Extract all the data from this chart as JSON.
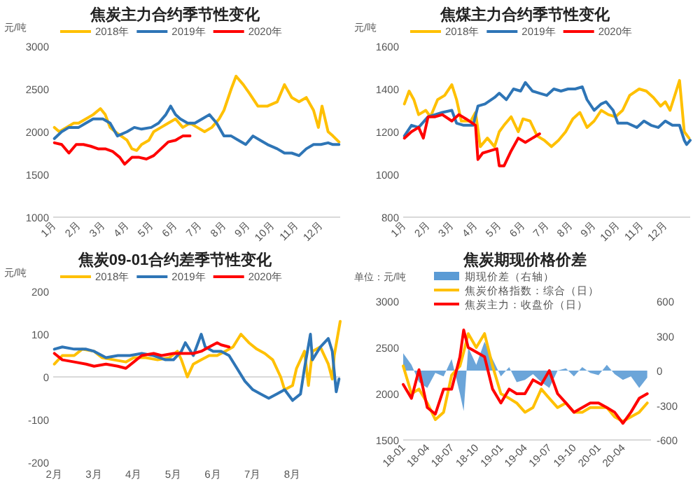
{
  "chart_data": [
    {
      "type": "line",
      "title": "焦炭主力合约季节性变化",
      "ylabel": "元/吨",
      "legend": "top",
      "line_style": "solid",
      "marker": "none",
      "xlim": [
        0.95,
        12.8
      ],
      "xticks": [
        {
          "value": 1,
          "label": "1月"
        },
        {
          "value": 2,
          "label": "2月"
        },
        {
          "value": 3,
          "label": "3月"
        },
        {
          "value": 4,
          "label": "4月"
        },
        {
          "value": 5,
          "label": "5月"
        },
        {
          "value": 6,
          "label": "6月"
        },
        {
          "value": 7,
          "label": "7月"
        },
        {
          "value": 8,
          "label": "8月"
        },
        {
          "value": 9,
          "label": "9月"
        },
        {
          "value": 10,
          "label": "10月"
        },
        {
          "value": 11,
          "label": "11月"
        },
        {
          "value": 12,
          "label": "12月"
        }
      ],
      "ylim": [
        1000,
        3000
      ],
      "yticks": [
        1000,
        1500,
        2000,
        2500,
        3000
      ],
      "series": [
        {
          "name": "2018年",
          "color": "#ffc000",
          "x": [
            1.0,
            1.2,
            1.5,
            1.8,
            2.0,
            2.3,
            2.6,
            2.9,
            3.1,
            3.3,
            3.6,
            4.0,
            4.2,
            4.4,
            4.6,
            4.9,
            5.1,
            5.4,
            5.7,
            6.0,
            6.3,
            6.6,
            6.9,
            7.2,
            7.5,
            7.8,
            8.0,
            8.3,
            8.5,
            8.8,
            9.05,
            9.4,
            9.8,
            10.2,
            10.5,
            10.8,
            11.1,
            11.4,
            11.7,
            11.9,
            12.05,
            12.3,
            12.5,
            12.75
          ],
          "values": [
            2050,
            2000,
            2050,
            2100,
            2100,
            2150,
            2200,
            2270,
            2200,
            2050,
            1980,
            1900,
            1800,
            1780,
            1850,
            1900,
            2000,
            2050,
            2100,
            2150,
            2050,
            2100,
            2050,
            2000,
            2050,
            2150,
            2250,
            2500,
            2650,
            2550,
            2450,
            2300,
            2300,
            2350,
            2550,
            2400,
            2350,
            2400,
            2250,
            2050,
            2300,
            2000,
            1950,
            1880
          ]
        },
        {
          "name": "2019年",
          "color": "#2e75b6",
          "x": [
            1.0,
            1.3,
            1.6,
            2.0,
            2.3,
            2.6,
            3.0,
            3.3,
            3.6,
            4.0,
            4.3,
            4.6,
            5.0,
            5.3,
            5.6,
            5.8,
            6.0,
            6.2,
            6.5,
            6.8,
            7.1,
            7.4,
            7.7,
            8.0,
            8.3,
            8.6,
            8.9,
            9.2,
            9.5,
            9.8,
            10.2,
            10.5,
            10.8,
            11.1,
            11.4,
            11.7,
            12.0,
            12.3,
            12.5,
            12.75
          ],
          "values": [
            1920,
            2000,
            2050,
            2050,
            2100,
            2150,
            2150,
            2100,
            1950,
            2000,
            2050,
            2030,
            2050,
            2100,
            2200,
            2300,
            2200,
            2150,
            2100,
            2100,
            2150,
            2200,
            2100,
            1950,
            1950,
            1900,
            1850,
            1950,
            1900,
            1850,
            1800,
            1750,
            1750,
            1720,
            1800,
            1850,
            1850,
            1870,
            1850,
            1850
          ]
        },
        {
          "name": "2020年",
          "color": "#ff0000",
          "x": [
            1.0,
            1.3,
            1.6,
            1.9,
            2.2,
            2.5,
            2.8,
            3.1,
            3.4,
            3.7,
            3.9,
            4.2,
            4.5,
            4.8,
            5.1,
            5.4,
            5.7,
            6.0,
            6.3,
            6.6
          ],
          "values": [
            1870,
            1850,
            1750,
            1850,
            1850,
            1830,
            1800,
            1800,
            1770,
            1700,
            1620,
            1700,
            1700,
            1680,
            1720,
            1800,
            1880,
            1900,
            1950,
            1950
          ]
        }
      ]
    },
    {
      "type": "line",
      "title": "焦煤主力合约季节性变化",
      "ylabel": "元/吨",
      "legend": "top",
      "line_style": "solid",
      "marker": "none",
      "xlim": [
        0.95,
        13.05
      ],
      "xticks": [
        {
          "value": 1,
          "label": "1月"
        },
        {
          "value": 2,
          "label": "2月"
        },
        {
          "value": 3,
          "label": "3月"
        },
        {
          "value": 4,
          "label": "4月"
        },
        {
          "value": 5,
          "label": "5月"
        },
        {
          "value": 6,
          "label": "6月"
        },
        {
          "value": 7,
          "label": "7月"
        },
        {
          "value": 8,
          "label": "8月"
        },
        {
          "value": 9,
          "label": "9月"
        },
        {
          "value": 10,
          "label": "10月"
        },
        {
          "value": 11,
          "label": "11月"
        },
        {
          "value": 12,
          "label": "12月"
        }
      ],
      "ylim": [
        800,
        1600
      ],
      "yticks": [
        800,
        1000,
        1200,
        1400,
        1600
      ],
      "series": [
        {
          "name": "2018年",
          "color": "#ffc000",
          "x": [
            1.0,
            1.2,
            1.4,
            1.6,
            1.9,
            2.1,
            2.4,
            2.7,
            3.0,
            3.2,
            3.4,
            3.8,
            4.0,
            4.2,
            4.5,
            4.8,
            5.0,
            5.2,
            5.5,
            5.8,
            6.0,
            6.3,
            6.6,
            6.9,
            7.2,
            7.5,
            7.8,
            8.1,
            8.4,
            8.7,
            9.0,
            9.3,
            9.6,
            9.9,
            10.2,
            10.5,
            10.9,
            11.2,
            11.5,
            11.8,
            12.0,
            12.2,
            12.6,
            12.8,
            13.0
          ],
          "values": [
            1330,
            1390,
            1350,
            1280,
            1300,
            1270,
            1350,
            1370,
            1420,
            1350,
            1250,
            1250,
            1290,
            1130,
            1170,
            1130,
            1200,
            1230,
            1270,
            1200,
            1260,
            1250,
            1180,
            1160,
            1130,
            1160,
            1200,
            1260,
            1290,
            1220,
            1250,
            1300,
            1280,
            1270,
            1300,
            1370,
            1400,
            1390,
            1360,
            1320,
            1340,
            1300,
            1440,
            1200,
            1170
          ]
        },
        {
          "name": "2019年",
          "color": "#2e75b6",
          "x": [
            1.0,
            1.3,
            1.6,
            2.0,
            2.3,
            2.6,
            3.0,
            3.2,
            3.5,
            3.9,
            4.1,
            4.4,
            4.8,
            5.0,
            5.3,
            5.6,
            5.9,
            6.1,
            6.4,
            6.7,
            7.0,
            7.3,
            7.6,
            7.9,
            8.2,
            8.5,
            8.7,
            9.0,
            9.3,
            9.5,
            9.8,
            10.0,
            10.4,
            10.8,
            11.1,
            11.4,
            11.7,
            12.0,
            12.3,
            12.6,
            12.8,
            12.9,
            13.05
          ],
          "values": [
            1180,
            1230,
            1220,
            1270,
            1280,
            1290,
            1300,
            1240,
            1230,
            1230,
            1320,
            1330,
            1360,
            1380,
            1350,
            1400,
            1390,
            1430,
            1390,
            1380,
            1370,
            1400,
            1390,
            1400,
            1400,
            1410,
            1350,
            1300,
            1330,
            1340,
            1300,
            1240,
            1240,
            1220,
            1250,
            1230,
            1220,
            1250,
            1230,
            1230,
            1160,
            1140,
            1160
          ]
        },
        {
          "name": "2020年",
          "color": "#ff0000",
          "x": [
            1.0,
            1.3,
            1.6,
            1.8,
            2.0,
            2.3,
            2.6,
            3.0,
            3.3,
            3.6,
            4.0,
            4.1,
            4.3,
            4.6,
            4.9,
            5.0,
            5.2,
            5.5,
            5.8,
            6.1,
            6.4,
            6.7
          ],
          "values": [
            1170,
            1200,
            1220,
            1170,
            1270,
            1270,
            1280,
            1250,
            1280,
            1260,
            1230,
            1070,
            1100,
            1110,
            1120,
            1040,
            1040,
            1110,
            1170,
            1150,
            1170,
            1190
          ]
        }
      ]
    },
    {
      "type": "line",
      "title": "焦炭09-01合约差季节性变化",
      "ylabel": "元/吨",
      "legend": "top",
      "line_style": "solid",
      "marker": "none",
      "xlim": [
        1.97,
        9.2
      ],
      "xticks": [
        {
          "value": 2,
          "label": "2月"
        },
        {
          "value": 3,
          "label": "3月"
        },
        {
          "value": 4,
          "label": "4月"
        },
        {
          "value": 5,
          "label": "5月"
        },
        {
          "value": 6,
          "label": "6月"
        },
        {
          "value": 7,
          "label": "7月"
        },
        {
          "value": 8,
          "label": "8月"
        }
      ],
      "ylim": [
        -200,
        200
      ],
      "yticks": [
        -200,
        -100,
        0,
        100,
        200
      ],
      "series": [
        {
          "name": "2018年",
          "color": "#ffc000",
          "x": [
            2.0,
            2.2,
            2.5,
            2.7,
            3.0,
            3.2,
            3.5,
            3.8,
            4.0,
            4.3,
            4.6,
            4.9,
            5.1,
            5.2,
            5.35,
            5.5,
            5.7,
            5.9,
            6.1,
            6.3,
            6.5,
            6.7,
            6.9,
            7.1,
            7.3,
            7.5,
            7.7,
            7.8,
            8.0,
            8.1,
            8.3,
            8.4,
            8.5,
            8.7,
            8.9,
            9.0,
            9.05,
            9.2
          ],
          "values": [
            30,
            50,
            50,
            65,
            60,
            45,
            40,
            35,
            45,
            45,
            40,
            45,
            60,
            40,
            0,
            30,
            40,
            50,
            50,
            60,
            70,
            100,
            80,
            65,
            55,
            40,
            0,
            -30,
            -20,
            20,
            60,
            -20,
            60,
            70,
            30,
            -5,
            50,
            130
          ]
        },
        {
          "name": "2019年",
          "color": "#2e75b6",
          "x": [
            2.0,
            2.2,
            2.5,
            2.8,
            3.0,
            3.3,
            3.6,
            3.9,
            4.2,
            4.5,
            4.8,
            5.0,
            5.2,
            5.3,
            5.5,
            5.7,
            5.8,
            6.0,
            6.2,
            6.4,
            6.6,
            6.8,
            7.0,
            7.2,
            7.4,
            7.6,
            7.8,
            8.0,
            8.2,
            8.3,
            8.45,
            8.5,
            8.7,
            8.9,
            9.0,
            9.1,
            9.17
          ],
          "values": [
            65,
            70,
            65,
            65,
            60,
            45,
            50,
            50,
            55,
            50,
            40,
            40,
            60,
            80,
            50,
            100,
            70,
            60,
            60,
            50,
            20,
            -10,
            -30,
            -40,
            -50,
            -40,
            -30,
            -55,
            -40,
            20,
            100,
            40,
            70,
            90,
            60,
            -35,
            -5
          ]
        },
        {
          "name": "2020年",
          "color": "#ff0000",
          "x": [
            2.0,
            2.2,
            2.5,
            2.8,
            3.0,
            3.3,
            3.6,
            3.8,
            4.0,
            4.2,
            4.5,
            4.7,
            5.0,
            5.2,
            5.5,
            5.7,
            5.9,
            6.1,
            6.2,
            6.4
          ],
          "values": [
            55,
            40,
            35,
            30,
            25,
            30,
            25,
            20,
            35,
            50,
            55,
            50,
            55,
            55,
            55,
            60,
            70,
            80,
            75,
            70
          ]
        }
      ]
    },
    {
      "type": "line",
      "title": "焦炭期现价格价差",
      "ylabel": "单位：元/吨",
      "legend": "top",
      "line_style": "solid",
      "marker": "none",
      "xlim": [
        "2018-01-01",
        "2020-07-15"
      ],
      "xticks": [
        {
          "value": "2018-01",
          "label": "18-01"
        },
        {
          "value": "2018-04",
          "label": "18-04"
        },
        {
          "value": "2018-07",
          "label": "18-07"
        },
        {
          "value": "2018-10",
          "label": "18-10"
        },
        {
          "value": "2019-01",
          "label": "19-01"
        },
        {
          "value": "2019-04",
          "label": "19-04"
        },
        {
          "value": "2019-07",
          "label": "19-07"
        },
        {
          "value": "2019-10",
          "label": "19-10"
        },
        {
          "value": "2020-01",
          "label": "20-01"
        },
        {
          "value": "2020-04",
          "label": "20-04"
        }
      ],
      "ylim": [
        1500,
        3000
      ],
      "yticks": [
        1500,
        2000,
        2500,
        3000
      ],
      "y2lim": [
        -600,
        600
      ],
      "y2ticks": [
        -600,
        -300,
        0,
        300,
        600
      ],
      "x": [
        "2018-01",
        "2018-02",
        "2018-03",
        "2018-04",
        "2018-05",
        "2018-06",
        "2018-07",
        "2018-08",
        "2018-08-15",
        "2018-09",
        "2018-10",
        "2018-11",
        "2018-12",
        "2019-01",
        "2019-02",
        "2019-03",
        "2019-04",
        "2019-05",
        "2019-06",
        "2019-07",
        "2019-08",
        "2019-09",
        "2019-10",
        "2019-11",
        "2019-12",
        "2020-01",
        "2020-02",
        "2020-03",
        "2020-04",
        "2020-05",
        "2020-06",
        "2020-07"
      ],
      "series": [
        {
          "name": "期现价差（右轴）",
          "type": "area",
          "axis": "y2",
          "color": "#5b9bd5",
          "values": [
            150,
            50,
            -100,
            -150,
            -20,
            -50,
            100,
            -200,
            -350,
            200,
            50,
            250,
            100,
            -50,
            30,
            -100,
            -80,
            -30,
            -100,
            -150,
            0,
            20,
            -50,
            30,
            -20,
            -40,
            50,
            -30,
            -80,
            -50,
            -150,
            -60
          ]
        },
        {
          "name": "焦炭价格指数：综合（日）",
          "color": "#ffc000",
          "values": [
            2300,
            2000,
            2050,
            1900,
            1720,
            1800,
            2200,
            2300,
            2450,
            2650,
            2500,
            2650,
            2300,
            2000,
            1950,
            1900,
            1800,
            1850,
            2050,
            1950,
            1850,
            1900,
            1800,
            1800,
            1850,
            1850,
            1850,
            1750,
            1700,
            1750,
            1800,
            1900
          ]
        },
        {
          "name": "焦炭主力：收盘价（日）",
          "color": "#ff0000",
          "values": [
            2100,
            1950,
            2260,
            1850,
            1780,
            2050,
            2050,
            2400,
            2690,
            2500,
            2450,
            2400,
            2050,
            1900,
            2050,
            2000,
            2000,
            2150,
            2100,
            2250,
            2000,
            1900,
            1800,
            1850,
            1900,
            1900,
            1850,
            1800,
            1680,
            1800,
            1950,
            2000
          ]
        }
      ]
    }
  ]
}
